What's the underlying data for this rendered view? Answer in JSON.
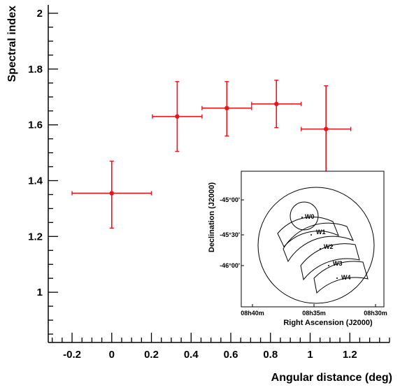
{
  "chart_data": {
    "type": "scatter",
    "xlabel": "Angular distance (deg)",
    "ylabel": "Spectral index",
    "xlim": [
      -0.32,
      1.4
    ],
    "ylim": [
      0.82,
      2.03
    ],
    "x_ticks": [
      -0.2,
      0,
      0.2,
      0.4,
      0.6,
      0.8,
      1,
      1.2
    ],
    "x_tick_labels": [
      "-0.2",
      "0",
      "0.2",
      "0.4",
      "0.6",
      "0.8",
      "1",
      "1.2"
    ],
    "y_ticks": [
      1,
      1.2,
      1.4,
      1.6,
      1.8,
      2
    ],
    "y_tick_labels": [
      "1",
      "1.2",
      "1.4",
      "1.6",
      "1.8",
      "2"
    ],
    "grid": false,
    "marker_color": "#e8141b",
    "series": [
      {
        "points": [
          {
            "x": 0.0,
            "y": 1.355,
            "xerr": 0.2,
            "yerr_up": 0.115,
            "yerr_down": 0.125
          },
          {
            "x": 0.33,
            "y": 1.63,
            "xerr": 0.125,
            "yerr_up": 0.125,
            "yerr_down": 0.125
          },
          {
            "x": 0.58,
            "y": 1.66,
            "xerr": 0.125,
            "yerr_up": 0.095,
            "yerr_down": 0.1
          },
          {
            "x": 0.83,
            "y": 1.675,
            "xerr": 0.125,
            "yerr_up": 0.085,
            "yerr_down": 0.085
          },
          {
            "x": 1.08,
            "y": 1.585,
            "xerr": 0.125,
            "yerr_up": 0.155,
            "yerr_down": 0.155
          }
        ]
      }
    ],
    "inset": {
      "xlabel": "Right Ascension (J2000)",
      "ylabel": "Declination (J2000)",
      "x_tick_labels": [
        "08h40m",
        "08h35m",
        "08h30m"
      ],
      "y_tick_labels": [
        "-45°00'",
        "-45°30'",
        "-46°00'"
      ],
      "regions": [
        "W0",
        "W1",
        "W2",
        "W3",
        "W4"
      ]
    }
  }
}
